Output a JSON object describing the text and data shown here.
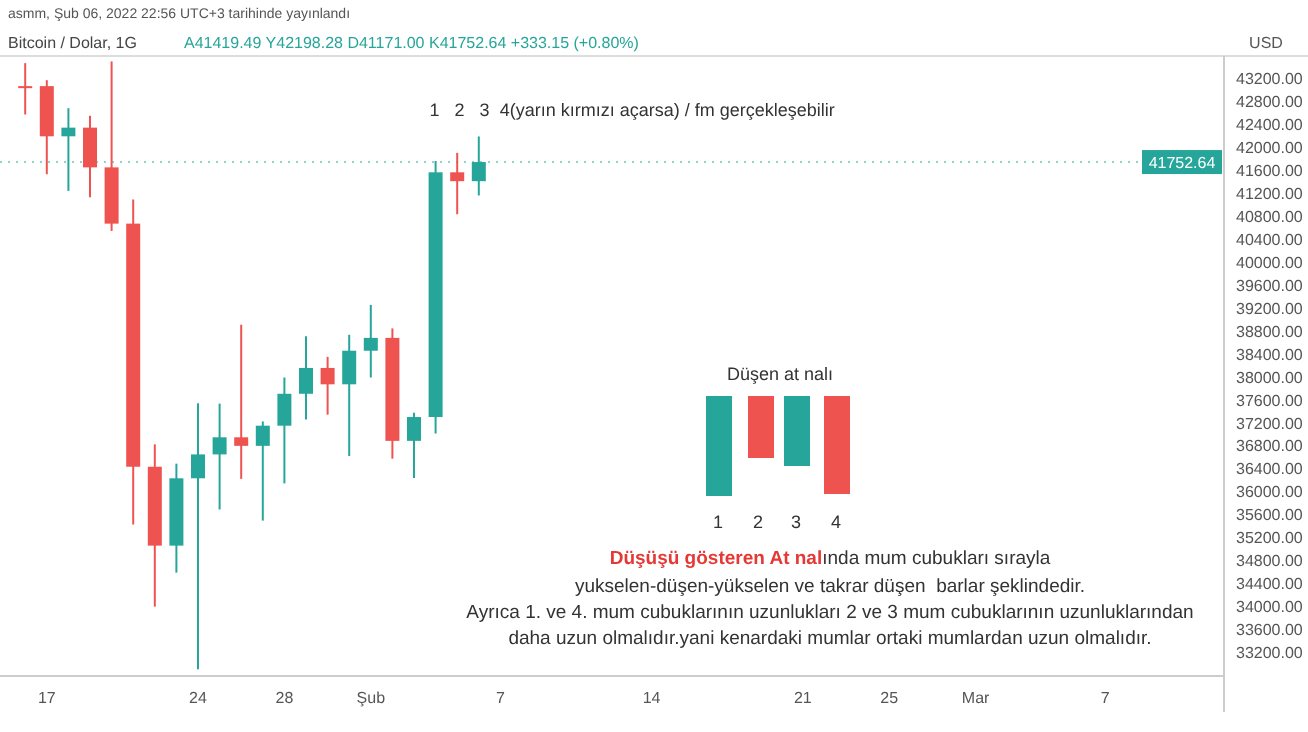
{
  "chart_data": {
    "type": "candlestick",
    "title": "Bitcoin / Dolar, 1G",
    "subtitle": "A41419.49 Y42198.28 D41171.00 K41752.64 +333.15 (+0.80%)",
    "ylabel": "USD",
    "annotations": [
      "asmm, Şub 06, 2022 22:56 UTC+3 tarihinde yayınlandı",
      "1   2   3  4(yarın kırmızı açarsa) / fm gerçekleşebilir",
      "Düşen at nalı",
      "1",
      "2",
      "3",
      "4",
      "Düşüşü gösteren At nal",
      "ında mum cubukları sırayla",
      "yukselen-düşen-yükselen ve takrar düşen  barlar şeklindedir.",
      "Ayrıca 1. ve 4. mum cubuklarının uzunlukları 2 ve 3 mum cubuklarının uzunluklarından",
      "daha uzun olmalıdır.yani kenardaki mumlar ortaki mumlardan uzun olmalıdır."
    ],
    "x": [
      "2022-01-16",
      "2022-01-17",
      "2022-01-18",
      "2022-01-19",
      "2022-01-20",
      "2022-01-21",
      "2022-01-22",
      "2022-01-23",
      "2022-01-24",
      "2022-01-25",
      "2022-01-26",
      "2022-01-27",
      "2022-01-28",
      "2022-01-29",
      "2022-01-30",
      "2022-01-31",
      "2022-02-01",
      "2022-02-02",
      "2022-02-03",
      "2022-02-04",
      "2022-02-05",
      "2022-02-06"
    ],
    "ohlc": [
      [
        43071,
        43476,
        42581,
        43075
      ],
      [
        43075,
        43179,
        41540,
        42201
      ],
      [
        42201,
        42691,
        41250,
        42352
      ],
      [
        42352,
        42559,
        41138,
        41660
      ],
      [
        41660,
        43505,
        40553,
        40680
      ],
      [
        40680,
        41100,
        35440,
        36445
      ],
      [
        36445,
        36835,
        34008,
        35071
      ],
      [
        35071,
        36499,
        34601,
        36244
      ],
      [
        36244,
        37550,
        32917,
        36660
      ],
      [
        36660,
        37545,
        35701,
        36958
      ],
      [
        36958,
        38919,
        36234,
        36809
      ],
      [
        36809,
        37234,
        35507,
        37160
      ],
      [
        37160,
        38000,
        36155,
        37716
      ],
      [
        37716,
        38720,
        37268,
        38166
      ],
      [
        38166,
        38359,
        37352,
        37881
      ],
      [
        37881,
        38744,
        36632,
        38466
      ],
      [
        38466,
        39265,
        38000,
        38690
      ],
      [
        38690,
        38855,
        36586,
        36896
      ],
      [
        36896,
        37387,
        36250,
        37311
      ],
      [
        37311,
        41772,
        37026,
        41574
      ],
      [
        41574,
        41913,
        40843,
        41419.49
      ],
      [
        41419.49,
        42198.28,
        41171.0,
        41752.64
      ]
    ],
    "colors": [
      "#ef5350",
      "#ef5350",
      "#26a69a",
      "#ef5350",
      "#ef5350",
      "#ef5350",
      "#ef5350",
      "#26a69a",
      "#26a69a",
      "#26a69a",
      "#ef5350",
      "#26a69a",
      "#26a69a",
      "#26a69a",
      "#ef5350",
      "#26a69a",
      "#26a69a",
      "#ef5350",
      "#26a69a",
      "#26a69a",
      "#ef5350",
      "#26a69a"
    ],
    "xlim": [
      "2022-01-14T20:00",
      "2022-03-12T12:00"
    ],
    "xticks": [
      {
        "value": "2022-01-17",
        "label": "17"
      },
      {
        "value": "2022-01-24",
        "label": "24"
      },
      {
        "value": "2022-01-28",
        "label": "28"
      },
      {
        "value": "2022-02-01",
        "label": "Şub"
      },
      {
        "value": "2022-02-07",
        "label": "7"
      },
      {
        "value": "2022-02-14",
        "label": "14"
      },
      {
        "value": "2022-02-21",
        "label": "21"
      },
      {
        "value": "2022-02-25",
        "label": "25"
      },
      {
        "value": "2022-03-01",
        "label": "Mar"
      },
      {
        "value": "2022-03-07",
        "label": "7"
      }
    ],
    "ylim": [
      32800,
      43600
    ],
    "yticks": [
      {
        "value": 33200,
        "label": "33200.00"
      },
      {
        "value": 33600,
        "label": "33600.00"
      },
      {
        "value": 34000,
        "label": "34000.00"
      },
      {
        "value": 34400,
        "label": "34400.00"
      },
      {
        "value": 34800,
        "label": "34800.00"
      },
      {
        "value": 35200,
        "label": "35200.00"
      },
      {
        "value": 35600,
        "label": "35600.00"
      },
      {
        "value": 36000,
        "label": "36000.00"
      },
      {
        "value": 36400,
        "label": "36400.00"
      },
      {
        "value": 36800,
        "label": "36800.00"
      },
      {
        "value": 37200,
        "label": "37200.00"
      },
      {
        "value": 37600,
        "label": "37600.00"
      },
      {
        "value": 38000,
        "label": "38000.00"
      },
      {
        "value": 38400,
        "label": "38400.00"
      },
      {
        "value": 38800,
        "label": "38800.00"
      },
      {
        "value": 39200,
        "label": "39200.00"
      },
      {
        "value": 39600,
        "label": "39600.00"
      },
      {
        "value": 40000,
        "label": "40000.00"
      },
      {
        "value": 40400,
        "label": "40400.00"
      },
      {
        "value": 40800,
        "label": "40800.00"
      },
      {
        "value": 41200,
        "label": "41200.00"
      },
      {
        "value": 41600,
        "label": "41600.00"
      },
      {
        "value": 42000,
        "label": "42000.00"
      },
      {
        "value": 42400,
        "label": "42400.00"
      },
      {
        "value": 42800,
        "label": "42800.00"
      },
      {
        "value": 43200,
        "label": "43200.00"
      }
    ],
    "ref_lines": [
      {
        "axis": "y",
        "value": 41752.64,
        "label": "41752.64",
        "color": "#26a69a",
        "line_style": "dotted"
      }
    ]
  }
}
